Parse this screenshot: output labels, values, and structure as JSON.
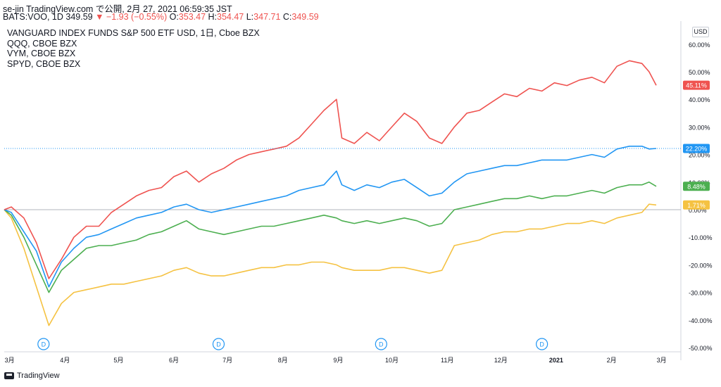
{
  "header": {
    "line1": "se-jin TradingView.com で公開, 2月 27, 2021 06:59:35 JST",
    "line2_prefix": "BATS:VOO, 1D 349.59",
    "line2_change": "▼ −1.93 (−0.55%)",
    "o_label": "O:",
    "o_value": "353.47",
    "h_label": "H:",
    "h_value": "354.47",
    "l_label": "L:",
    "l_value": "347.71",
    "c_label": "C:",
    "c_value": "349.59"
  },
  "currency_button": "USD",
  "footer": {
    "brand": "TradingView"
  },
  "colors": {
    "qqq": "#ef5350",
    "voo": "#2196f3",
    "vym": "#4caf50",
    "spyd": "#f5c242",
    "baseline": "#b2b5be"
  },
  "chart_data": {
    "type": "line",
    "y_unit": "%",
    "ylim": [
      -50,
      60
    ],
    "y_ticks": [
      "60.00%",
      "50.00%",
      "40.00%",
      "30.00%",
      "20.00%",
      "10.00%",
      "0.00%",
      "-10.00%",
      "-20.00%",
      "-30.00%",
      "-40.00%",
      "-50.00%"
    ],
    "y_tick_values": [
      60,
      50,
      40,
      30,
      20,
      10,
      0,
      -10,
      -20,
      -30,
      -40,
      -50
    ],
    "x_ticks": [
      "3月",
      "4月",
      "5月",
      "6月",
      "7月",
      "8月",
      "9月",
      "10月",
      "11月",
      "12月",
      "2021",
      "2月",
      "3月"
    ],
    "dividend_markers": [
      "D",
      "D",
      "D",
      "D"
    ],
    "legend": [
      "VANGUARD INDEX FUNDS S&P 500 ETF USD, 1日, Cboe BZX",
      "QQQ, CBOE BZX",
      "VYM, CBOE BZX",
      "SPYD, CBOE BZX"
    ],
    "x": [
      "2020-02-27",
      "2020-03-02",
      "2020-03-09",
      "2020-03-16",
      "2020-03-23",
      "2020-03-30",
      "2020-04-06",
      "2020-04-13",
      "2020-04-20",
      "2020-04-27",
      "2020-05-04",
      "2020-05-11",
      "2020-05-18",
      "2020-05-25",
      "2020-06-01",
      "2020-06-08",
      "2020-06-15",
      "2020-06-22",
      "2020-06-29",
      "2020-07-06",
      "2020-07-13",
      "2020-07-20",
      "2020-07-27",
      "2020-08-03",
      "2020-08-10",
      "2020-08-17",
      "2020-08-24",
      "2020-08-31",
      "2020-09-03",
      "2020-09-10",
      "2020-09-17",
      "2020-09-24",
      "2020-10-01",
      "2020-10-08",
      "2020-10-15",
      "2020-10-22",
      "2020-10-29",
      "2020-11-05",
      "2020-11-12",
      "2020-11-19",
      "2020-11-26",
      "2020-12-03",
      "2020-12-10",
      "2020-12-17",
      "2020-12-24",
      "2020-12-31",
      "2021-01-07",
      "2021-01-14",
      "2021-01-21",
      "2021-01-28",
      "2021-02-04",
      "2021-02-11",
      "2021-02-18",
      "2021-02-22",
      "2021-02-26"
    ],
    "series": [
      {
        "name": "QQQ",
        "values": [
          0,
          1,
          -3,
          -12,
          -25,
          -18,
          -10,
          -6,
          -6,
          -1,
          2,
          5,
          7,
          8,
          12,
          14,
          10,
          13,
          15,
          18,
          20,
          21,
          22,
          23,
          26,
          31,
          36,
          40,
          26,
          24,
          28,
          25,
          30,
          35,
          32,
          26,
          24,
          30,
          35,
          36,
          39,
          42,
          41,
          44,
          43,
          46,
          45,
          47,
          48,
          46,
          52,
          54,
          53,
          50,
          45.11
        ]
      },
      {
        "name": "VOO",
        "values": [
          0,
          -1,
          -8,
          -15,
          -28,
          -19,
          -14,
          -10,
          -9,
          -7,
          -5,
          -3,
          -2,
          -1,
          1,
          2,
          0,
          -1,
          0,
          1,
          2,
          3,
          4,
          5,
          7,
          8,
          9,
          14,
          9,
          7,
          9,
          8,
          10,
          11,
          8,
          5,
          6,
          10,
          13,
          14,
          15,
          16,
          16,
          17,
          18,
          18,
          18,
          19,
          20,
          19,
          22,
          23,
          23,
          22,
          22.2
        ]
      },
      {
        "name": "VYM",
        "values": [
          0,
          -2,
          -10,
          -20,
          -30,
          -22,
          -18,
          -14,
          -13,
          -13,
          -12,
          -11,
          -9,
          -8,
          -6,
          -4,
          -7,
          -8,
          -9,
          -8,
          -7,
          -6,
          -6,
          -5,
          -4,
          -3,
          -2,
          -3,
          -4,
          -5,
          -4,
          -5,
          -4,
          -3,
          -4,
          -6,
          -5,
          0,
          1,
          2,
          3,
          4,
          4,
          5,
          4,
          5,
          5,
          6,
          7,
          6,
          8,
          9,
          9,
          10,
          8.48
        ]
      },
      {
        "name": "SPYD",
        "values": [
          0,
          -3,
          -14,
          -28,
          -42,
          -34,
          -30,
          -29,
          -28,
          -27,
          -27,
          -26,
          -25,
          -24,
          -22,
          -21,
          -23,
          -24,
          -24,
          -23,
          -22,
          -21,
          -21,
          -20,
          -20,
          -19,
          -19,
          -20,
          -21,
          -22,
          -22,
          -22,
          -21,
          -21,
          -22,
          -23,
          -22,
          -13,
          -12,
          -11,
          -9,
          -8,
          -8,
          -7,
          -7,
          -6,
          -5,
          -5,
          -4,
          -5,
          -3,
          -2,
          -1,
          2,
          1.71
        ]
      }
    ],
    "last_labels": [
      "45.11%",
      "22.20%",
      "8.48%",
      "1.71%"
    ],
    "grid": false,
    "legend_position": "top-left"
  }
}
